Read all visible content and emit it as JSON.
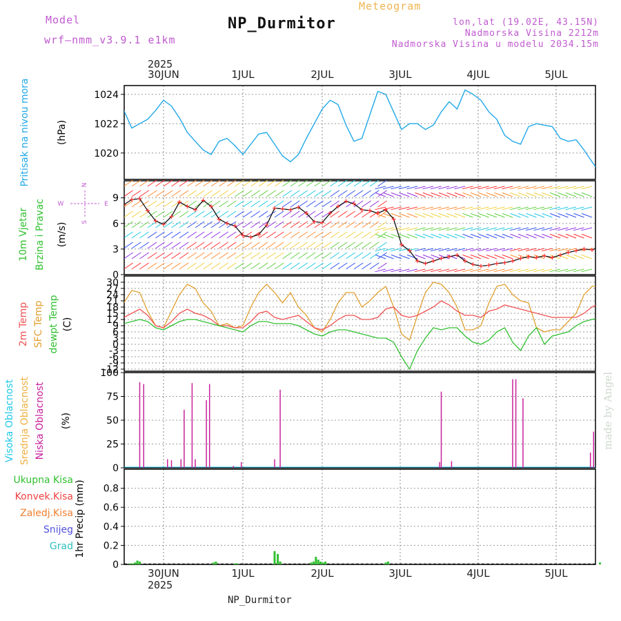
{
  "header": {
    "model_label": "Model",
    "model_name": "wrf—nmm_v3.9.1 e1km",
    "station": "NP_Durmitor",
    "meteogram": "Meteogram",
    "lonlat": "lon,lat (19.02E, 43.15N)",
    "altitude": "Nadmorska Visina 2212m",
    "model_altitude": "Nadmorska Visina u modelu 2034.15m",
    "year_top": "2025",
    "year_bottom": "2025",
    "bottom_station": "NP_Durmitor",
    "watermark": "made by Angel"
  },
  "colors": {
    "pressure": "#20a8e8",
    "wind_speed": "#111111",
    "wind_marks": "#ff3030",
    "t2m": "#f05050",
    "sfc": "#e0a030",
    "dewpt": "#30c030",
    "cloud_high": "#20c8e8",
    "cloud_mid": "#f0b040",
    "cloud_low": "#c8209c",
    "rain_total": "#30c030",
    "rain_conv": "#f04040",
    "rain_frz": "#f08030",
    "snow": "#5050e0",
    "graupel": "#30c0c0"
  },
  "chart_data": [
    {
      "type": "line",
      "id": "pressure",
      "ylabel_main": "Pritisak na nivou mora",
      "ylabel_unit": "(hPa)",
      "yticks": [
        1020,
        1022,
        1024
      ],
      "ylim": [
        1018.2,
        1024.6
      ],
      "x_days": [
        "30JUN",
        "1JUL",
        "2JUL",
        "3JUL",
        "4JUL",
        "5JUL"
      ],
      "x": [
        -0.5,
        -0.4,
        -0.3,
        -0.2,
        -0.1,
        0,
        0.1,
        0.2,
        0.3,
        0.4,
        0.5,
        0.6,
        0.7,
        0.8,
        0.9,
        1.0,
        1.1,
        1.2,
        1.3,
        1.4,
        1.5,
        1.6,
        1.7,
        1.8,
        1.9,
        2.0,
        2.1,
        2.2,
        2.3,
        2.4,
        2.5,
        2.6,
        2.7,
        2.8,
        2.9,
        3.0,
        3.1,
        3.2,
        3.3,
        3.4,
        3.5,
        3.6,
        3.7,
        3.8,
        3.9,
        4.0,
        4.1,
        4.2,
        4.3,
        4.4,
        4.5,
        4.6,
        4.7,
        4.8,
        4.9,
        5.0,
        5.1,
        5.2,
        5.3,
        5.4,
        5.5
      ],
      "values": [
        1022.9,
        1021.7,
        1022.0,
        1022.3,
        1022.9,
        1023.6,
        1023.2,
        1022.4,
        1021.4,
        1020.8,
        1020.2,
        1019.9,
        1020.8,
        1021.0,
        1020.5,
        1019.9,
        1020.6,
        1021.3,
        1021.4,
        1020.6,
        1019.8,
        1019.4,
        1019.9,
        1021.0,
        1022.0,
        1023.0,
        1023.6,
        1023.3,
        1021.9,
        1020.8,
        1021.0,
        1022.6,
        1024.2,
        1024.0,
        1022.8,
        1021.6,
        1022.0,
        1022.0,
        1021.6,
        1021.9,
        1022.8,
        1023.5,
        1023.0,
        1024.3,
        1024.0,
        1023.6,
        1022.8,
        1022.3,
        1021.2,
        1020.8,
        1020.6,
        1021.8,
        1022.0,
        1021.9,
        1021.8,
        1021.0,
        1020.8,
        1020.9,
        1020.2,
        1019.4,
        1018.6
      ]
    },
    {
      "type": "line",
      "id": "wind",
      "ylabel_main": "10m Vjetar",
      "ylabel_sub": "Brzina i Pravac",
      "ylabel_unit": "(m/s)",
      "compass": [
        "N",
        "S",
        "W",
        "E"
      ],
      "yticks": [
        0,
        3,
        6,
        9
      ],
      "ylim": [
        0,
        11
      ],
      "x": [
        -0.5,
        -0.4,
        -0.3,
        -0.2,
        -0.1,
        0,
        0.1,
        0.2,
        0.3,
        0.4,
        0.5,
        0.6,
        0.7,
        0.8,
        0.9,
        1.0,
        1.1,
        1.2,
        1.3,
        1.4,
        1.5,
        1.6,
        1.7,
        1.8,
        1.9,
        2.0,
        2.1,
        2.2,
        2.3,
        2.4,
        2.5,
        2.6,
        2.7,
        2.8,
        2.9,
        3.0,
        3.1,
        3.2,
        3.3,
        3.4,
        3.5,
        3.6,
        3.7,
        3.8,
        3.9,
        4.0,
        4.1,
        4.2,
        4.3,
        4.4,
        4.5,
        4.6,
        4.7,
        4.8,
        4.9,
        5.0,
        5.1,
        5.2,
        5.3,
        5.4,
        5.5
      ],
      "values": [
        8.2,
        8.8,
        8.9,
        7.5,
        6.3,
        5.9,
        6.8,
        8.5,
        8.0,
        7.6,
        8.7,
        8.0,
        6.5,
        6.0,
        5.7,
        4.6,
        4.4,
        4.7,
        5.8,
        7.8,
        7.7,
        7.6,
        7.9,
        7.2,
        6.2,
        6.1,
        7.2,
        8.0,
        8.6,
        8.3,
        7.6,
        7.5,
        7.2,
        7.6,
        6.5,
        3.5,
        2.8,
        1.6,
        1.3,
        1.6,
        1.9,
        2.1,
        2.3,
        1.6,
        1.2,
        1.0,
        1.1,
        1.3,
        1.4,
        1.6,
        1.9,
        2.1,
        2.0,
        2.2,
        2.0,
        2.3,
        2.6,
        2.8,
        3.0,
        2.9,
        3.3
      ]
    },
    {
      "type": "line",
      "id": "temperature",
      "ylabel_lines": [
        "2m Temp",
        "SFC Temp",
        "dewpt Temp"
      ],
      "ylabel_unit": "(C)",
      "yticks": [
        -12,
        -9,
        -6,
        -3,
        0,
        3,
        6,
        9,
        12,
        15,
        18,
        21,
        24,
        27,
        30
      ],
      "ylim": [
        -13,
        33
      ],
      "x": [
        -0.5,
        -0.4,
        -0.3,
        -0.2,
        -0.1,
        0,
        0.1,
        0.2,
        0.3,
        0.4,
        0.5,
        0.6,
        0.7,
        0.8,
        0.9,
        1.0,
        1.1,
        1.2,
        1.3,
        1.4,
        1.5,
        1.6,
        1.7,
        1.8,
        1.9,
        2.0,
        2.1,
        2.2,
        2.3,
        2.4,
        2.5,
        2.6,
        2.7,
        2.8,
        2.9,
        3.0,
        3.1,
        3.2,
        3.3,
        3.4,
        3.5,
        3.6,
        3.7,
        3.8,
        3.9,
        4.0,
        4.1,
        4.2,
        4.3,
        4.4,
        4.5,
        4.6,
        4.7,
        4.8,
        4.9,
        5.0,
        5.1,
        5.2,
        5.3,
        5.4,
        5.5
      ],
      "series": [
        {
          "name": "2m Temp",
          "values": [
            13,
            15,
            17,
            14,
            9,
            8,
            11,
            15,
            17,
            15,
            14,
            12,
            9,
            9,
            8,
            8,
            11,
            15,
            16,
            13,
            12,
            13,
            14,
            11,
            8,
            7,
            9,
            12,
            14,
            14,
            12,
            12,
            13,
            17,
            18,
            14,
            13,
            14,
            16,
            18,
            21,
            19,
            16,
            14,
            14,
            13,
            16,
            17,
            19,
            18,
            17,
            16,
            15,
            14,
            13,
            13,
            13,
            13,
            15,
            18,
            20
          ]
        },
        {
          "name": "SFC Temp",
          "values": [
            20,
            26,
            25,
            16,
            9,
            8,
            16,
            24,
            29,
            27,
            20,
            16,
            9,
            10,
            8,
            9,
            18,
            25,
            29,
            25,
            20,
            25,
            18,
            14,
            8,
            6,
            12,
            20,
            25,
            25,
            18,
            21,
            25,
            28,
            18,
            5,
            2,
            14,
            25,
            30,
            29,
            25,
            18,
            7,
            7,
            9,
            20,
            28,
            29,
            24,
            21,
            20,
            8,
            6,
            7,
            7,
            11,
            15,
            24,
            28,
            28
          ]
        },
        {
          "name": "dewpt Temp",
          "values": [
            10,
            11,
            12,
            11,
            8,
            7,
            9,
            11,
            12,
            12,
            11,
            10,
            9,
            8,
            7,
            6,
            9,
            11,
            11,
            10,
            10,
            10,
            9,
            7,
            5,
            4,
            6,
            7,
            7,
            6,
            5,
            4,
            3,
            3,
            1,
            -6,
            -12,
            -3,
            3,
            8,
            7,
            8,
            8,
            4,
            1,
            0,
            2,
            6,
            8,
            1,
            -3,
            4,
            8,
            0,
            4,
            5,
            6,
            9,
            11,
            12,
            13
          ]
        }
      ]
    },
    {
      "type": "bar",
      "id": "clouds",
      "ylabel_lines": [
        "Visoka Oblacnost",
        "Srednja Oblacnost",
        "Niska Oblacnost"
      ],
      "ylabel_unit": "(%)",
      "yticks": [
        0,
        25,
        50,
        75,
        100
      ],
      "ylim": [
        0,
        100
      ],
      "series": [
        {
          "name": "Niska Oblacnost",
          "x": [
            -0.3,
            -0.25,
            0.05,
            0.1,
            0.22,
            0.26,
            0.36,
            0.4,
            0.54,
            0.58,
            0.88,
            0.98,
            1.4,
            1.47,
            3.48,
            3.5,
            3.63,
            4.4,
            4.44,
            4.53,
            5.38,
            5.42
          ],
          "values": [
            90,
            88,
            9,
            8,
            9,
            61,
            89,
            9,
            71,
            88,
            2,
            6,
            9,
            82,
            6,
            80,
            7,
            93,
            93,
            73,
            16,
            38
          ]
        }
      ]
    },
    {
      "type": "bar",
      "id": "precip",
      "ylabel_main": "1hr Precip",
      "ylabel_unit": "(mm)",
      "legend": [
        "Ukupna Kisa",
        "Konvek.Kisa",
        "Zaledj.Kisa",
        "Snijeg",
        "Grad"
      ],
      "yticks": [
        0,
        0.2,
        0.4,
        0.6,
        0.8
      ],
      "ylim": [
        0,
        1.0
      ],
      "series": [
        {
          "name": "Ukupna Kisa",
          "x": [
            -0.42,
            -0.39,
            -0.36,
            -0.33,
            -0.3,
            0.63,
            0.66,
            0.9,
            0.93,
            1.4,
            1.44,
            1.47,
            1.86,
            1.89,
            1.92,
            1.95,
            1.98,
            2.01,
            2.04,
            2.8,
            2.83,
            5.5
          ],
          "values": [
            0.01,
            0.01,
            0.02,
            0.04,
            0.03,
            0.02,
            0.03,
            0.01,
            0.01,
            0.14,
            0.11,
            0.03,
            0.02,
            0.03,
            0.08,
            0.05,
            0.03,
            0.02,
            0.03,
            0.02,
            0.03,
            0.02
          ]
        }
      ]
    }
  ]
}
